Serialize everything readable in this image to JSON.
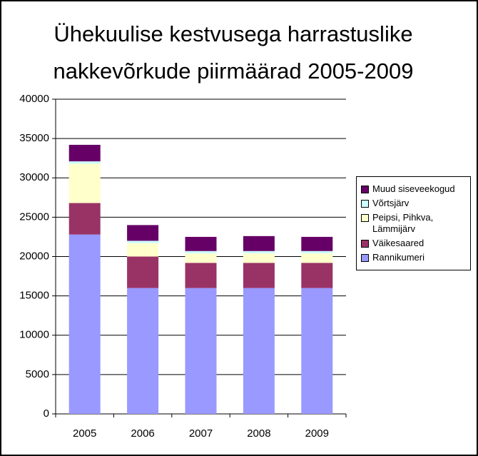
{
  "chart_data": {
    "type": "stacked_bar",
    "title": "Ühekuulise kestvusega harrastuslike nakkevõrkude piirmäärad 2005-2009",
    "categories": [
      "2005",
      "2006",
      "2007",
      "2008",
      "2009"
    ],
    "series": [
      {
        "name": "Rannikumeri",
        "color": "#9999ff",
        "values": [
          22800,
          16000,
          16000,
          16000,
          16000
        ]
      },
      {
        "name": "Väikesaared",
        "color": "#993366",
        "values": [
          4000,
          4000,
          3200,
          3200,
          3200
        ]
      },
      {
        "name": "Peipsi, Pihkva, Lämmijärv",
        "color": "#ffffcc",
        "values": [
          5000,
          1700,
          1200,
          1200,
          1200
        ]
      },
      {
        "name": "Võrtsjärv",
        "color": "#ccffff",
        "values": [
          300,
          300,
          300,
          300,
          300
        ]
      },
      {
        "name": "Muud siseveekogud",
        "color": "#660066",
        "values": [
          2100,
          2000,
          1800,
          1900,
          1800
        ]
      }
    ],
    "ylim": [
      0,
      40000
    ],
    "yticks": [
      0,
      5000,
      10000,
      15000,
      20000,
      25000,
      30000,
      35000,
      40000
    ],
    "grid": true
  }
}
